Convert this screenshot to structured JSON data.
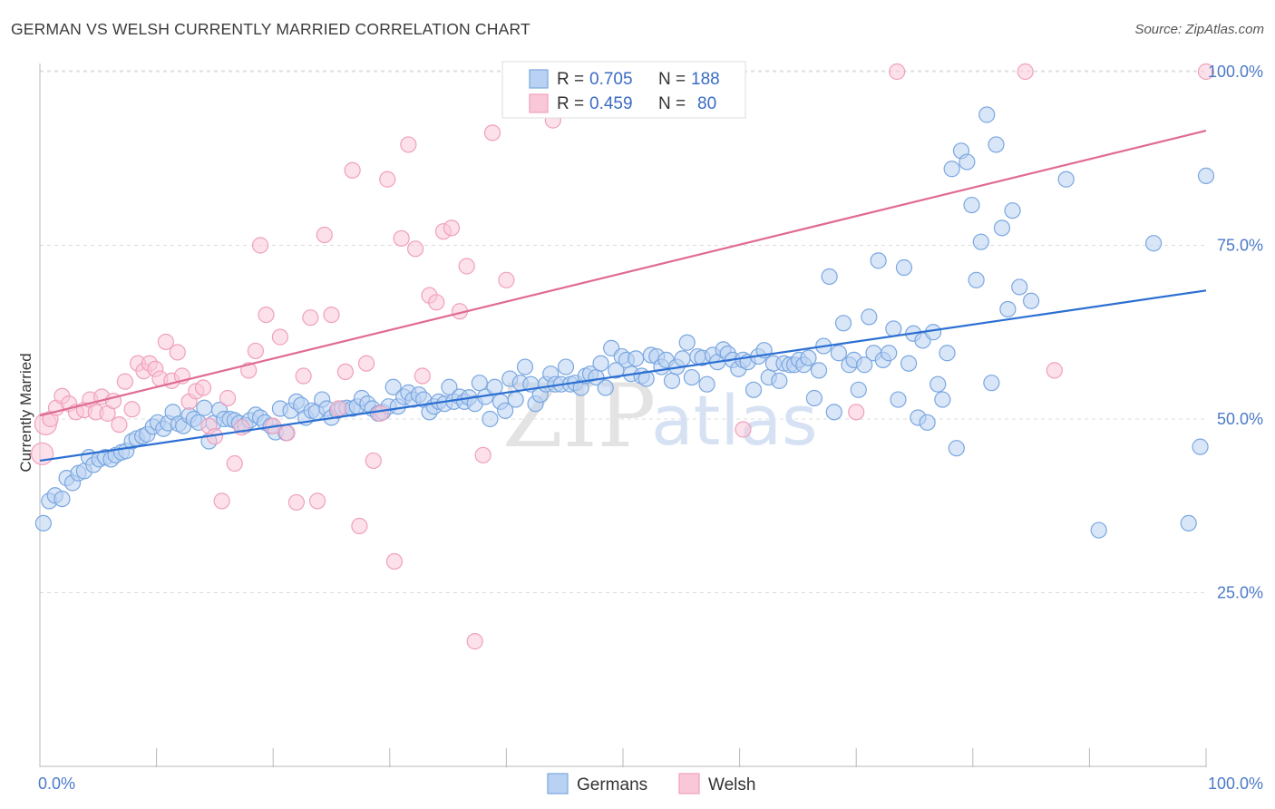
{
  "title": "GERMAN VS WELSH CURRENTLY MARRIED CORRELATION CHART",
  "source": "Source: ZipAtlas.com",
  "watermark": {
    "zip": "ZIP",
    "atlas": "atlas"
  },
  "chart_data": {
    "type": "scatter",
    "xlabel": "",
    "ylabel": "Currently Married",
    "xlim": [
      0,
      100
    ],
    "ylim": [
      0,
      103
    ],
    "x_tick_labels": [
      {
        "value": 0,
        "label": "0.0%"
      },
      {
        "value": 100,
        "label": "100.0%"
      }
    ],
    "y_ticks": [
      {
        "value": 25,
        "label": "25.0%"
      },
      {
        "value": 50,
        "label": "50.0%"
      },
      {
        "value": 75,
        "label": "75.0%"
      },
      {
        "value": 100,
        "label": "100.0%"
      }
    ],
    "grid": "horizontal dashed",
    "legend_position": "top-center",
    "legend": [
      {
        "series": "Germans",
        "r_label": "R =",
        "r_value": "0.705",
        "n_label": "N =",
        "n_value": "188"
      },
      {
        "series": "Welsh",
        "r_label": "R =",
        "r_value": "0.459",
        "n_label": "N =",
        "n_value": "80"
      }
    ],
    "series": [
      {
        "name": "Germans",
        "color": "#7aa7e0",
        "fill": "#b9d1f2",
        "line_color": "#2b6fd2",
        "trend": [
          [
            0,
            44.0
          ],
          [
            100,
            68.5
          ]
        ],
        "points": [
          [
            0.3,
            35.0
          ],
          [
            0.8,
            38.2
          ],
          [
            1.3,
            39.0
          ],
          [
            1.9,
            38.5
          ],
          [
            2.3,
            41.5
          ],
          [
            2.8,
            40.8
          ],
          [
            3.3,
            42.2
          ],
          [
            3.8,
            42.5
          ],
          [
            4.2,
            44.5
          ],
          [
            4.6,
            43.4
          ],
          [
            5.1,
            44.2
          ],
          [
            5.6,
            44.5
          ],
          [
            6.1,
            44.2
          ],
          [
            6.5,
            44.8
          ],
          [
            7.0,
            45.2
          ],
          [
            7.4,
            45.4
          ],
          [
            7.9,
            46.8
          ],
          [
            8.3,
            47.2
          ],
          [
            8.8,
            47.5
          ],
          [
            9.2,
            47.8
          ],
          [
            9.7,
            48.9
          ],
          [
            10.1,
            49.5
          ],
          [
            10.6,
            48.6
          ],
          [
            11.0,
            49.4
          ],
          [
            11.4,
            51.0
          ],
          [
            11.9,
            49.3
          ],
          [
            12.3,
            49.0
          ],
          [
            12.8,
            50.5
          ],
          [
            13.2,
            50.0
          ],
          [
            13.6,
            49.5
          ],
          [
            14.1,
            51.6
          ],
          [
            14.5,
            46.8
          ],
          [
            14.9,
            49.4
          ],
          [
            15.4,
            51.3
          ],
          [
            15.8,
            50.0
          ],
          [
            16.3,
            50.0
          ],
          [
            16.7,
            49.8
          ],
          [
            17.1,
            49.4
          ],
          [
            17.6,
            49.1
          ],
          [
            18.0,
            49.8
          ],
          [
            18.5,
            50.6
          ],
          [
            18.9,
            50.2
          ],
          [
            19.3,
            49.5
          ],
          [
            19.8,
            49.0
          ],
          [
            20.2,
            48.1
          ],
          [
            20.6,
            51.5
          ],
          [
            21.1,
            48.0
          ],
          [
            21.5,
            51.2
          ],
          [
            22.0,
            52.5
          ],
          [
            22.4,
            52.0
          ],
          [
            22.8,
            50.2
          ],
          [
            23.3,
            51.2
          ],
          [
            23.7,
            51.0
          ],
          [
            24.2,
            52.8
          ],
          [
            24.6,
            51.5
          ],
          [
            25.0,
            50.2
          ],
          [
            25.5,
            51.2
          ],
          [
            25.9,
            51.5
          ],
          [
            26.3,
            51.6
          ],
          [
            26.8,
            51.5
          ],
          [
            27.2,
            51.8
          ],
          [
            27.6,
            53.0
          ],
          [
            28.1,
            52.2
          ],
          [
            28.5,
            51.5
          ],
          [
            29.0,
            50.8
          ],
          [
            29.4,
            51.0
          ],
          [
            29.9,
            51.8
          ],
          [
            30.3,
            54.6
          ],
          [
            30.7,
            51.8
          ],
          [
            31.2,
            53.2
          ],
          [
            31.6,
            53.8
          ],
          [
            32.0,
            52.8
          ],
          [
            32.5,
            53.5
          ],
          [
            32.9,
            52.8
          ],
          [
            33.4,
            51.0
          ],
          [
            33.8,
            51.8
          ],
          [
            34.2,
            52.5
          ],
          [
            34.7,
            52.2
          ],
          [
            35.1,
            54.6
          ],
          [
            35.5,
            52.5
          ],
          [
            36.0,
            53.2
          ],
          [
            36.4,
            52.5
          ],
          [
            36.8,
            53.1
          ],
          [
            37.3,
            52.2
          ],
          [
            37.7,
            55.2
          ],
          [
            38.2,
            53.2
          ],
          [
            38.6,
            50.0
          ],
          [
            39.0,
            54.6
          ],
          [
            39.5,
            52.5
          ],
          [
            39.9,
            51.2
          ],
          [
            40.3,
            55.8
          ],
          [
            40.8,
            52.8
          ],
          [
            41.2,
            55.2
          ],
          [
            41.6,
            57.5
          ],
          [
            42.1,
            55.0
          ],
          [
            42.5,
            52.2
          ],
          [
            42.9,
            53.5
          ],
          [
            43.4,
            55.0
          ],
          [
            43.8,
            56.5
          ],
          [
            44.2,
            55.0
          ],
          [
            44.7,
            55.0
          ],
          [
            45.1,
            57.5
          ],
          [
            45.5,
            55.0
          ],
          [
            45.9,
            55.2
          ],
          [
            46.4,
            54.5
          ],
          [
            46.8,
            56.2
          ],
          [
            47.2,
            56.5
          ],
          [
            47.7,
            56.0
          ],
          [
            48.1,
            58.0
          ],
          [
            48.5,
            54.5
          ],
          [
            49.0,
            60.2
          ],
          [
            49.4,
            57.0
          ],
          [
            49.9,
            59.0
          ],
          [
            50.3,
            58.5
          ],
          [
            50.7,
            56.5
          ],
          [
            51.1,
            58.7
          ],
          [
            51.6,
            56.2
          ],
          [
            52.0,
            55.8
          ],
          [
            52.4,
            59.2
          ],
          [
            52.9,
            59.0
          ],
          [
            53.3,
            57.5
          ],
          [
            53.7,
            58.5
          ],
          [
            54.2,
            55.5
          ],
          [
            54.6,
            57.5
          ],
          [
            55.1,
            58.7
          ],
          [
            55.5,
            61.0
          ],
          [
            55.9,
            56.0
          ],
          [
            56.4,
            59.0
          ],
          [
            56.8,
            58.8
          ],
          [
            57.2,
            55.0
          ],
          [
            57.7,
            59.2
          ],
          [
            58.1,
            58.2
          ],
          [
            58.6,
            60.0
          ],
          [
            59.0,
            59.4
          ],
          [
            59.4,
            58.5
          ],
          [
            59.9,
            57.2
          ],
          [
            60.3,
            58.5
          ],
          [
            60.7,
            58.2
          ],
          [
            61.2,
            54.2
          ],
          [
            61.6,
            59.0
          ],
          [
            62.1,
            59.9
          ],
          [
            62.5,
            56.0
          ],
          [
            62.9,
            58.0
          ],
          [
            63.4,
            55.5
          ],
          [
            63.8,
            58.0
          ],
          [
            64.3,
            57.8
          ],
          [
            64.7,
            57.8
          ],
          [
            65.1,
            58.5
          ],
          [
            65.5,
            57.8
          ],
          [
            65.9,
            58.8
          ],
          [
            66.4,
            53.0
          ],
          [
            66.8,
            57.0
          ],
          [
            67.2,
            60.5
          ],
          [
            67.7,
            70.5
          ],
          [
            68.1,
            51.0
          ],
          [
            68.5,
            59.5
          ],
          [
            68.9,
            63.8
          ],
          [
            69.4,
            57.8
          ],
          [
            69.8,
            58.5
          ],
          [
            70.2,
            54.2
          ],
          [
            70.7,
            57.8
          ],
          [
            71.1,
            64.7
          ],
          [
            71.5,
            59.5
          ],
          [
            71.9,
            72.8
          ],
          [
            72.3,
            58.5
          ],
          [
            72.8,
            59.5
          ],
          [
            73.2,
            63.0
          ],
          [
            73.6,
            52.8
          ],
          [
            74.1,
            71.8
          ],
          [
            74.5,
            58.0
          ],
          [
            74.9,
            62.3
          ],
          [
            75.3,
            50.2
          ],
          [
            75.7,
            61.3
          ],
          [
            76.1,
            49.5
          ],
          [
            76.6,
            62.5
          ],
          [
            77.0,
            55.0
          ],
          [
            77.4,
            52.8
          ],
          [
            77.8,
            59.5
          ],
          [
            78.2,
            86.0
          ],
          [
            78.6,
            45.8
          ],
          [
            79.0,
            88.6
          ],
          [
            79.5,
            87.0
          ],
          [
            79.9,
            80.8
          ],
          [
            80.3,
            70.0
          ],
          [
            80.7,
            75.5
          ],
          [
            81.2,
            93.8
          ],
          [
            81.6,
            55.2
          ],
          [
            82.0,
            89.5
          ],
          [
            82.5,
            77.5
          ],
          [
            83.0,
            65.8
          ],
          [
            83.4,
            80.0
          ],
          [
            84.0,
            69.0
          ],
          [
            85.0,
            67.0
          ],
          [
            88.0,
            84.5
          ],
          [
            90.8,
            34.0
          ],
          [
            95.5,
            75.3
          ],
          [
            98.5,
            35.0
          ],
          [
            99.5,
            46.0
          ],
          [
            100.0,
            85.0
          ]
        ]
      },
      {
        "name": "Welsh",
        "color": "#f0a0bc",
        "fill": "#f9c8d8",
        "line_color": "#e06a94",
        "trend": [
          [
            0,
            50.5
          ],
          [
            100,
            91.5
          ]
        ],
        "points": [
          [
            0.2,
            45.0
          ],
          [
            0.5,
            49.3
          ],
          [
            0.9,
            50.0
          ],
          [
            1.4,
            51.6
          ],
          [
            1.9,
            53.3
          ],
          [
            2.5,
            52.2
          ],
          [
            3.1,
            51.0
          ],
          [
            3.8,
            51.3
          ],
          [
            4.3,
            52.8
          ],
          [
            4.8,
            51.0
          ],
          [
            5.3,
            53.2
          ],
          [
            5.8,
            50.8
          ],
          [
            6.3,
            52.6
          ],
          [
            6.8,
            49.2
          ],
          [
            7.3,
            55.4
          ],
          [
            7.9,
            51.4
          ],
          [
            8.4,
            58.0
          ],
          [
            8.9,
            56.9
          ],
          [
            9.4,
            58.0
          ],
          [
            9.9,
            57.2
          ],
          [
            10.3,
            55.8
          ],
          [
            10.8,
            61.1
          ],
          [
            11.3,
            55.5
          ],
          [
            11.8,
            59.6
          ],
          [
            12.2,
            56.2
          ],
          [
            12.8,
            52.5
          ],
          [
            13.4,
            54.0
          ],
          [
            14.0,
            54.5
          ],
          [
            14.5,
            49.0
          ],
          [
            15.0,
            47.5
          ],
          [
            15.6,
            38.2
          ],
          [
            16.1,
            53.0
          ],
          [
            16.7,
            43.6
          ],
          [
            17.3,
            48.8
          ],
          [
            17.9,
            57.0
          ],
          [
            18.5,
            59.8
          ],
          [
            18.9,
            75.0
          ],
          [
            19.4,
            65.0
          ],
          [
            20.0,
            49.0
          ],
          [
            20.6,
            61.8
          ],
          [
            21.2,
            48.0
          ],
          [
            22.0,
            38.0
          ],
          [
            22.6,
            56.2
          ],
          [
            23.2,
            64.6
          ],
          [
            23.8,
            38.2
          ],
          [
            24.4,
            76.5
          ],
          [
            25.0,
            65.0
          ],
          [
            25.6,
            51.5
          ],
          [
            26.2,
            56.8
          ],
          [
            26.8,
            85.8
          ],
          [
            27.4,
            34.6
          ],
          [
            28.0,
            58.0
          ],
          [
            28.6,
            44.0
          ],
          [
            29.2,
            50.8
          ],
          [
            29.8,
            84.5
          ],
          [
            30.4,
            29.5
          ],
          [
            31.0,
            76.0
          ],
          [
            31.6,
            89.5
          ],
          [
            32.2,
            74.5
          ],
          [
            32.8,
            56.2
          ],
          [
            33.4,
            67.8
          ],
          [
            34.0,
            66.8
          ],
          [
            34.6,
            77.0
          ],
          [
            35.3,
            77.5
          ],
          [
            36.0,
            65.5
          ],
          [
            36.6,
            72.0
          ],
          [
            37.3,
            18.0
          ],
          [
            38.0,
            44.8
          ],
          [
            38.8,
            91.2
          ],
          [
            40.0,
            70.0
          ],
          [
            41.3,
            100.0
          ],
          [
            42.6,
            100.0
          ],
          [
            44.0,
            93.0
          ],
          [
            46.0,
            100.0
          ],
          [
            60.3,
            48.5
          ],
          [
            70.0,
            51.0
          ],
          [
            73.5,
            100.0
          ],
          [
            84.5,
            100.0
          ],
          [
            87.0,
            57.0
          ],
          [
            100.0,
            100.0
          ]
        ]
      }
    ]
  }
}
